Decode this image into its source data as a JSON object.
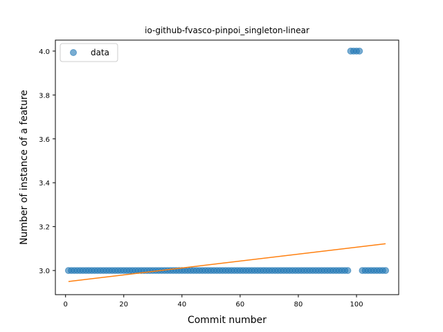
{
  "chart_data": {
    "type": "scatter",
    "title": "io-github-fvasco-pinpoi_singleton-linear",
    "xlabel": "Commit number",
    "ylabel": "Number of instance of a feature",
    "xlim": [
      -3.5,
      114.5
    ],
    "ylim": [
      2.89,
      4.05
    ],
    "xticks": [
      0,
      20,
      40,
      60,
      80,
      100
    ],
    "yticks": [
      3.0,
      3.2,
      3.4,
      3.6,
      3.8,
      4.0
    ],
    "xtick_labels": [
      "0",
      "20",
      "40",
      "60",
      "80",
      "100"
    ],
    "ytick_labels": [
      "3.0",
      "3.2",
      "3.4",
      "3.6",
      "3.8",
      "4.0"
    ],
    "legend": {
      "position": "top-left",
      "entries": [
        "data"
      ]
    },
    "colors": {
      "data": "#1f77b4",
      "fit": "#ff7f0e"
    },
    "series": [
      {
        "name": "data",
        "kind": "scatter",
        "x_start": 1,
        "values": [
          3,
          3,
          3,
          3,
          3,
          3,
          3,
          3,
          3,
          3,
          3,
          3,
          3,
          3,
          3,
          3,
          3,
          3,
          3,
          3,
          3,
          3,
          3,
          3,
          3,
          3,
          3,
          3,
          3,
          3,
          3,
          3,
          3,
          3,
          3,
          3,
          3,
          3,
          3,
          3,
          3,
          3,
          3,
          3,
          3,
          3,
          3,
          3,
          3,
          3,
          3,
          3,
          3,
          3,
          3,
          3,
          3,
          3,
          3,
          3,
          3,
          3,
          3,
          3,
          3,
          3,
          3,
          3,
          3,
          3,
          3,
          3,
          3,
          3,
          3,
          3,
          3,
          3,
          3,
          3,
          3,
          3,
          3,
          3,
          3,
          3,
          3,
          3,
          3,
          3,
          3,
          3,
          3,
          3,
          3,
          3,
          3,
          4,
          4,
          4,
          4,
          3,
          3,
          3,
          3,
          3,
          3,
          3,
          3,
          3
        ]
      },
      {
        "kind": "line",
        "x": [
          1,
          110
        ],
        "values": [
          2.95,
          3.122
        ]
      }
    ]
  }
}
